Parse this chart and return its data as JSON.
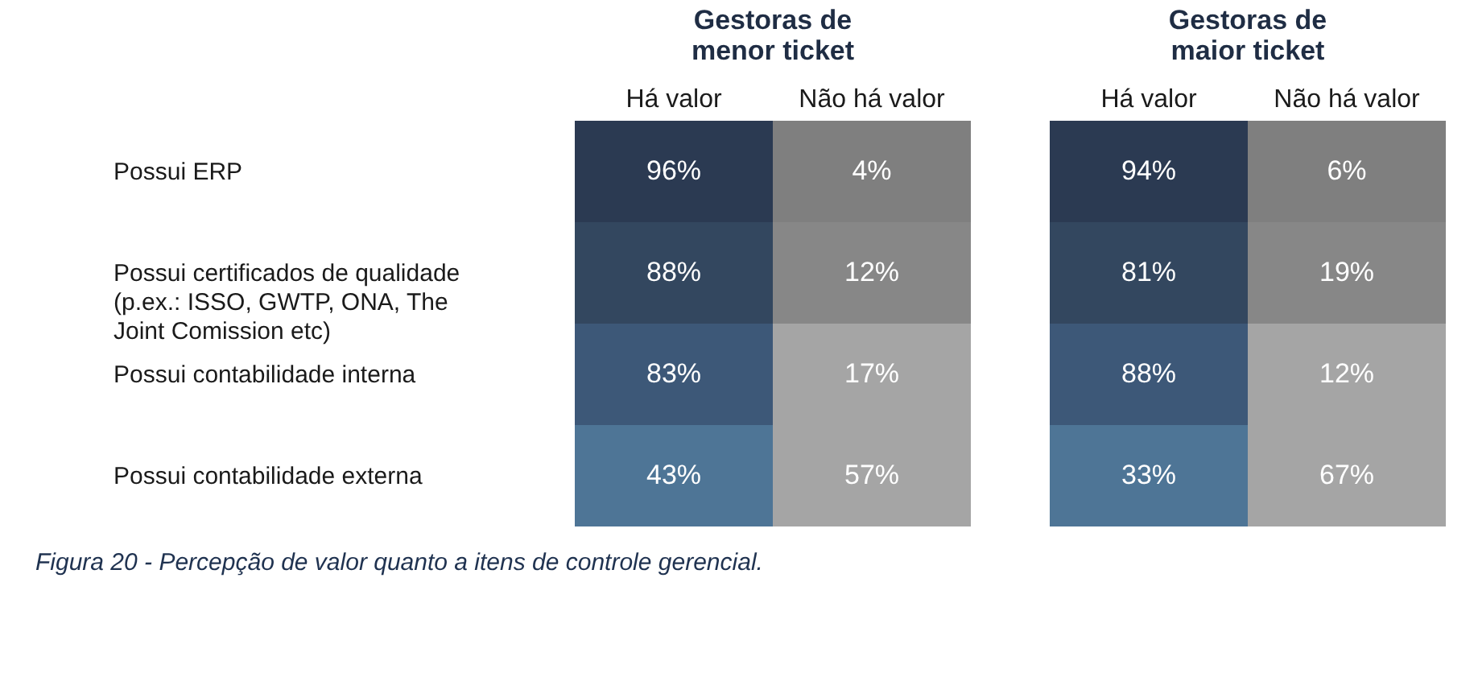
{
  "chart_data": [
    {
      "type": "heatmap",
      "title": "Gestoras de\nmenor ticket",
      "categories": [
        "Há valor",
        "Não há valor"
      ],
      "y_categories": [
        "Possui ERP",
        "Possui certificados de qualidade (p.ex.: ISSO, GWTP, ONA, The Joint Comission etc)",
        "Possui contabilidade interna",
        "Possui contabilidade externa"
      ],
      "cells": [
        [
          96,
          4
        ],
        [
          88,
          12
        ],
        [
          83,
          17
        ],
        [
          43,
          57
        ]
      ],
      "cell_labels": [
        [
          "96%",
          "4%"
        ],
        [
          "88%",
          "12%"
        ],
        [
          "83%",
          "17%"
        ],
        [
          "43%",
          "57%"
        ]
      ],
      "colors": [
        [
          "#2b3a52",
          "#7f7f7f"
        ],
        [
          "#33475f",
          "#878787"
        ],
        [
          "#3d5878",
          "#a5a5a5"
        ],
        [
          "#4e7596",
          "#a5a5a5"
        ]
      ],
      "annotations": [
        "Figura 20 - Percepção de valor quanto a itens de controle gerencial."
      ]
    },
    {
      "type": "heatmap",
      "title": "Gestoras de\nmaior ticket",
      "categories": [
        "Há valor",
        "Não há valor"
      ],
      "y_categories": [
        null,
        null,
        null,
        null
      ],
      "cells": [
        [
          94,
          6
        ],
        [
          81,
          19
        ],
        [
          88,
          12
        ],
        [
          33,
          67
        ]
      ],
      "cell_labels": [
        [
          "94%",
          "6%"
        ],
        [
          "81%",
          "19%"
        ],
        [
          "88%",
          "12%"
        ],
        [
          "33%",
          "67%"
        ]
      ],
      "colors": [
        [
          "#2b3a52",
          "#7f7f7f"
        ],
        [
          "#33475f",
          "#878787"
        ],
        [
          "#3d5878",
          "#a5a5a5"
        ],
        [
          "#4e7596",
          "#a5a5a5"
        ]
      ],
      "tick_labels": "x"
    }
  ]
}
